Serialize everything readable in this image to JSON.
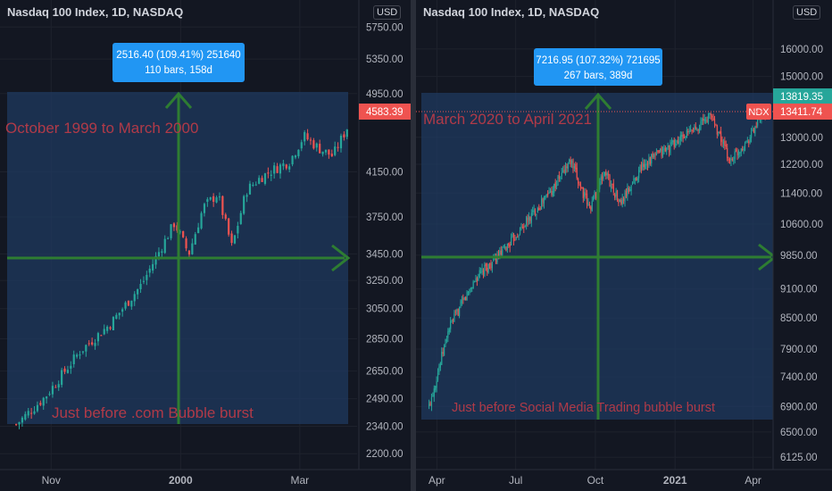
{
  "panels": [
    {
      "title": "Nasdaq 100 Index, 1D, NASDAQ",
      "currency": "USD",
      "annotation": "October 1999 to March 2000",
      "footer_note": "Just before .com Bubble burst",
      "measure_line1": "2516.40 (109.41%) 251640",
      "measure_line2": "110 bars, 158d",
      "last_price": "4583.39"
    },
    {
      "title": "Nasdaq 100 Index, 1D, NASDAQ",
      "currency": "USD",
      "annotation": "March 2020 to April 2021",
      "footer_note": "Just before Social Media Trading  bubble burst",
      "measure_line1": "7216.95 (107.32%) 721695",
      "measure_line2": "267 bars, 389d",
      "last_price": "13819.35",
      "ndx_label": "NDX",
      "ndx_price": "13411.74"
    }
  ],
  "chart_data": [
    {
      "type": "candlestick",
      "title": "Nasdaq 100 Index, 1D, NASDAQ",
      "y_ticks": [
        "5750.00",
        "5350.00",
        "4950.00",
        "4150.00",
        "3750.00",
        "3450.00",
        "3250.00",
        "3050.00",
        "2850.00",
        "2650.00",
        "2490.00",
        "2340.00",
        "2200.00"
      ],
      "x_ticks": [
        "Nov",
        "2000",
        "Mar"
      ],
      "ylim": [
        2140,
        5800
      ],
      "scale": "log",
      "x": [
        "1999-10-15",
        "1999-10-29",
        "1999-11-15",
        "1999-11-30",
        "1999-12-15",
        "1999-12-31",
        "2000-01-07",
        "2000-01-14",
        "2000-01-21",
        "2000-01-28",
        "2000-02-04",
        "2000-02-11",
        "2000-02-18",
        "2000-02-25",
        "2000-03-03",
        "2000-03-10",
        "2000-03-17",
        "2000-03-24"
      ],
      "close": [
        2350,
        2500,
        2770,
        2950,
        3220,
        3700,
        3450,
        3830,
        3950,
        3500,
        3980,
        4100,
        4180,
        4250,
        4500,
        4380,
        4300,
        4583.39
      ],
      "series": [
        {
          "name": "NDX",
          "color": "#26a69a"
        }
      ]
    },
    {
      "type": "candlestick",
      "title": "Nasdaq 100 Index, 1D, NASDAQ",
      "y_ticks": [
        "16000.00",
        "15000.00",
        "13000.00",
        "12200.00",
        "11400.00",
        "10600.00",
        "9850.00",
        "9100.00",
        "8500.00",
        "7900.00",
        "7400.00",
        "6900.00",
        "6500.00",
        "6125.00"
      ],
      "x_ticks": [
        "Apr",
        "Jul",
        "Oct",
        "2021",
        "Apr"
      ],
      "ylim": [
        6000,
        17000
      ],
      "scale": "log",
      "x": [
        "2020-03-23",
        "2020-04-15",
        "2020-05-15",
        "2020-06-15",
        "2020-07-15",
        "2020-08-15",
        "2020-09-02",
        "2020-09-24",
        "2020-10-12",
        "2020-10-30",
        "2020-11-25",
        "2020-12-31",
        "2021-01-25",
        "2021-02-12",
        "2021-03-05",
        "2021-03-25",
        "2021-04-15"
      ],
      "close": [
        6900,
        8300,
        9300,
        9900,
        10700,
        11600,
        12300,
        11000,
        12000,
        11100,
        12200,
        12800,
        13300,
        13700,
        12300,
        12900,
        13819.35
      ],
      "series": [
        {
          "name": "NDX",
          "color": "#26a69a"
        }
      ]
    }
  ]
}
